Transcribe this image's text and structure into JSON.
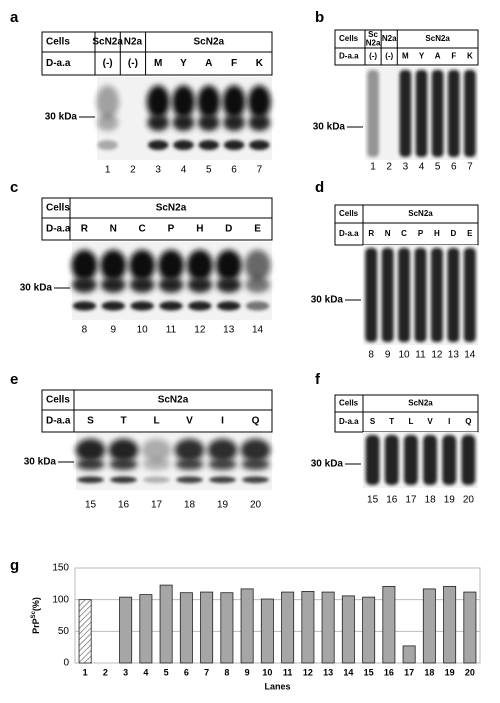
{
  "panels": [
    {
      "letter": "a",
      "row_labels": [
        "Cells",
        "D-a.a"
      ],
      "cell_groups": [
        "ScN2a",
        "N2a",
        "ScN2a"
      ],
      "daa": [
        "(-)",
        "(-)",
        "M",
        "Y",
        "A",
        "F",
        "K"
      ],
      "lanes": [
        1,
        2,
        3,
        4,
        5,
        6,
        7
      ],
      "marker": "30 kDa"
    },
    {
      "letter": "b",
      "row_labels": [
        "Cells",
        "D-a.a"
      ],
      "cell_groups": [
        "Sc N2a",
        "N2a",
        "ScN2a"
      ],
      "daa": [
        "(-)",
        "(-)",
        "M",
        "Y",
        "A",
        "F",
        "K"
      ],
      "lanes": [
        1,
        2,
        3,
        4,
        5,
        6,
        7
      ],
      "marker": "30 kDa"
    },
    {
      "letter": "c",
      "row_labels": [
        "Cells",
        "D-a.a"
      ],
      "cell_groups": [
        "ScN2a"
      ],
      "daa": [
        "R",
        "N",
        "C",
        "P",
        "H",
        "D",
        "E"
      ],
      "lanes": [
        8,
        9,
        10,
        11,
        12,
        13,
        14
      ],
      "marker": "30 kDa"
    },
    {
      "letter": "d",
      "row_labels": [
        "Cells",
        "D-a.a"
      ],
      "cell_groups": [
        "ScN2a"
      ],
      "daa": [
        "R",
        "N",
        "C",
        "P",
        "H",
        "D",
        "E"
      ],
      "lanes": [
        8,
        9,
        10,
        11,
        12,
        13,
        14
      ],
      "marker": "30 kDa"
    },
    {
      "letter": "e",
      "row_labels": [
        "Cells",
        "D-a.a"
      ],
      "cell_groups": [
        "ScN2a"
      ],
      "daa": [
        "S",
        "T",
        "L",
        "V",
        "I",
        "Q"
      ],
      "lanes": [
        15,
        16,
        17,
        18,
        19,
        20
      ],
      "marker": "30 kDa"
    },
    {
      "letter": "f",
      "row_labels": [
        "Cells",
        "D-a.a"
      ],
      "cell_groups": [
        "ScN2a"
      ],
      "daa": [
        "S",
        "T",
        "L",
        "V",
        "I",
        "Q"
      ],
      "lanes": [
        15,
        16,
        17,
        18,
        19,
        20
      ],
      "marker": "30 kDa"
    }
  ],
  "chart_data": {
    "type": "bar",
    "letter": "g",
    "ylabel": {
      "base": "PrP",
      "sup": "Sc",
      "rest": "(%)"
    },
    "xlabel": "Lanes",
    "categories": [
      "1",
      "2",
      "3",
      "4",
      "5",
      "6",
      "7",
      "8",
      "9",
      "10",
      "11",
      "12",
      "13",
      "14",
      "15",
      "16",
      "17",
      "18",
      "19",
      "20"
    ],
    "values": [
      100,
      0,
      104,
      108,
      123,
      111,
      112,
      111,
      117,
      101,
      112,
      113,
      112,
      106,
      104,
      121,
      27,
      117,
      121,
      112
    ],
    "fills": [
      "hatched",
      "solid",
      "solid",
      "solid",
      "solid",
      "solid",
      "solid",
      "solid",
      "solid",
      "solid",
      "solid",
      "solid",
      "solid",
      "solid",
      "solid",
      "solid",
      "solid",
      "solid",
      "solid",
      "solid"
    ],
    "color": "#a6a6a6",
    "ylim": [
      0,
      150
    ],
    "yticks": [
      0,
      50,
      100,
      150
    ],
    "grid": true
  }
}
